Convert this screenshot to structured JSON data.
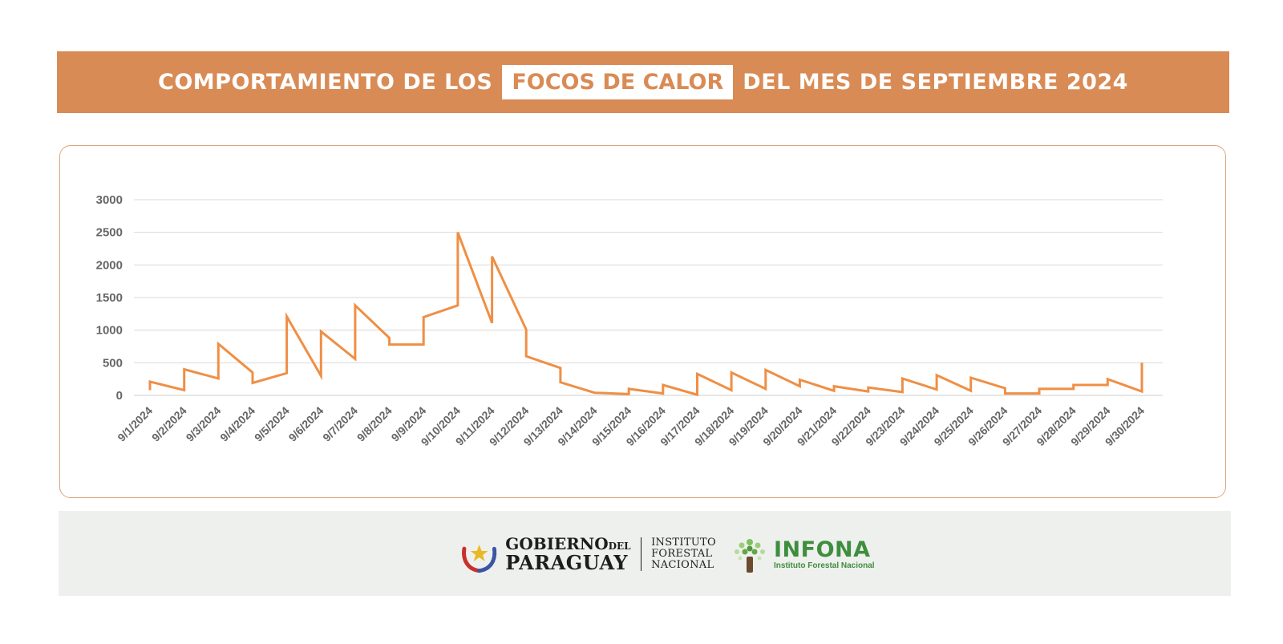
{
  "header": {
    "title_before": "COMPORTAMIENTO DE LOS",
    "title_highlight": "FOCOS DE CALOR",
    "title_after": "DEL MES DE SEPTIEMBRE 2024"
  },
  "colors": {
    "accent": "#d98b55",
    "line": "#ef8f45",
    "grid": "#d9d9d9",
    "tick_text": "#666666",
    "footer_bg": "#eef0ed",
    "infona_green": "#3e8e3e"
  },
  "chart_data": {
    "type": "line",
    "title": "",
    "xlabel": "",
    "ylabel": "",
    "ylim": [
      0,
      3000
    ],
    "yticks": [
      0,
      500,
      1000,
      1500,
      2000,
      2500,
      3000
    ],
    "grid": true,
    "categories": [
      "9/1/2024",
      "9/2/2024",
      "9/3/2024",
      "9/4/2024",
      "9/5/2024",
      "9/6/2024",
      "9/7/2024",
      "9/8/2024",
      "9/9/2024",
      "9/10/2024",
      "9/11/2024",
      "9/12/2024",
      "9/13/2024",
      "9/14/2024",
      "9/15/2024",
      "9/16/2024",
      "9/17/2024",
      "9/18/2024",
      "9/19/2024",
      "9/20/2024",
      "9/21/2024",
      "9/22/2024",
      "9/23/2024",
      "9/24/2024",
      "9/25/2024",
      "9/26/2024",
      "9/27/2024",
      "9/28/2024",
      "9/29/2024",
      "9/30/2024"
    ],
    "series": [
      {
        "points": [
          [
            "9/1/2024",
            80
          ],
          [
            "9/1/2024",
            210
          ],
          [
            "9/2/2024",
            80
          ],
          [
            "9/2/2024",
            400
          ],
          [
            "9/3/2024",
            260
          ],
          [
            "9/3/2024",
            790
          ],
          [
            "9/4/2024",
            350
          ],
          [
            "9/4/2024",
            190
          ],
          [
            "9/5/2024",
            340
          ],
          [
            "9/5/2024",
            1210
          ],
          [
            "9/6/2024",
            300
          ],
          [
            "9/6/2024",
            980
          ],
          [
            "9/7/2024",
            560
          ],
          [
            "9/7/2024",
            1380
          ],
          [
            "9/8/2024",
            880
          ],
          [
            "9/8/2024",
            780
          ],
          [
            "9/9/2024",
            780
          ],
          [
            "9/9/2024",
            1200
          ],
          [
            "9/10/2024",
            1380
          ],
          [
            "9/10/2024",
            2500
          ],
          [
            "9/11/2024",
            1110
          ],
          [
            "9/11/2024",
            2130
          ],
          [
            "9/12/2024",
            1010
          ],
          [
            "9/12/2024",
            600
          ],
          [
            "9/13/2024",
            420
          ],
          [
            "9/13/2024",
            200
          ],
          [
            "9/14/2024",
            40
          ],
          [
            "9/15/2024",
            20
          ],
          [
            "9/15/2024",
            100
          ],
          [
            "9/16/2024",
            30
          ],
          [
            "9/16/2024",
            160
          ],
          [
            "9/17/2024",
            10
          ],
          [
            "9/17/2024",
            330
          ],
          [
            "9/18/2024",
            80
          ],
          [
            "9/18/2024",
            350
          ],
          [
            "9/19/2024",
            100
          ],
          [
            "9/19/2024",
            390
          ],
          [
            "9/20/2024",
            140
          ],
          [
            "9/20/2024",
            240
          ],
          [
            "9/21/2024",
            70
          ],
          [
            "9/21/2024",
            140
          ],
          [
            "9/22/2024",
            60
          ],
          [
            "9/22/2024",
            120
          ],
          [
            "9/23/2024",
            50
          ],
          [
            "9/23/2024",
            260
          ],
          [
            "9/24/2024",
            90
          ],
          [
            "9/24/2024",
            310
          ],
          [
            "9/25/2024",
            70
          ],
          [
            "9/25/2024",
            270
          ],
          [
            "9/26/2024",
            110
          ],
          [
            "9/26/2024",
            30
          ],
          [
            "9/27/2024",
            30
          ],
          [
            "9/27/2024",
            100
          ],
          [
            "9/28/2024",
            100
          ],
          [
            "9/28/2024",
            160
          ],
          [
            "9/29/2024",
            160
          ],
          [
            "9/29/2024",
            250
          ],
          [
            "9/30/2024",
            60
          ],
          [
            "9/30/2024",
            500
          ]
        ]
      }
    ]
  },
  "footer": {
    "gov_line1": "GOBIERNO",
    "gov_line1_small": "DEL",
    "gov_line2": "PARAGUAY",
    "inst_lines": [
      "INSTITUTO",
      "FORESTAL",
      "NACIONAL"
    ],
    "infona_name": "INFONA",
    "infona_sub": "Instituto Forestal Nacional",
    "icons": [
      "coat-of-arms-seal",
      "tree-logo"
    ]
  }
}
